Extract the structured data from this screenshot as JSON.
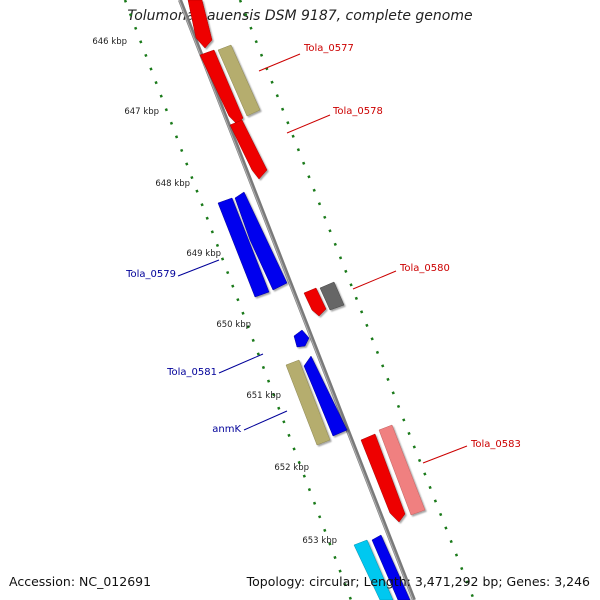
{
  "title": "Tolumonas auensis DSM 9187, complete genome",
  "footer": {
    "accession": "Accession: NC_012691",
    "summary": "Topology: circular; Length: 3,471,292 bp; Genes: 3,246"
  },
  "colors": {
    "backbone": "#888888",
    "tick_dot": "#1a7a1a",
    "gene_red": "#ee0000",
    "gene_olive": "#b5ad6e",
    "gene_blue": "#0000ee",
    "gene_gray": "#666666",
    "gene_pink": "#f08080",
    "gene_cyan": "#00c8f0",
    "label_red": "#cc0000",
    "label_blue": "#000099"
  },
  "ticks": [
    "646 kbp",
    "647 kbp",
    "648 kbp",
    "649 kbp",
    "650 kbp",
    "651 kbp",
    "652 kbp",
    "653 kbp"
  ],
  "gene_labels": [
    {
      "name": "Tola_0577",
      "color": "red"
    },
    {
      "name": "Tola_0578",
      "color": "red"
    },
    {
      "name": "Tola_0579",
      "color": "blue"
    },
    {
      "name": "Tola_0580",
      "color": "red"
    },
    {
      "name": "Tola_0581",
      "color": "blue"
    },
    {
      "name": "anmK",
      "color": "blue"
    },
    {
      "name": "Tola_0583",
      "color": "red"
    }
  ]
}
